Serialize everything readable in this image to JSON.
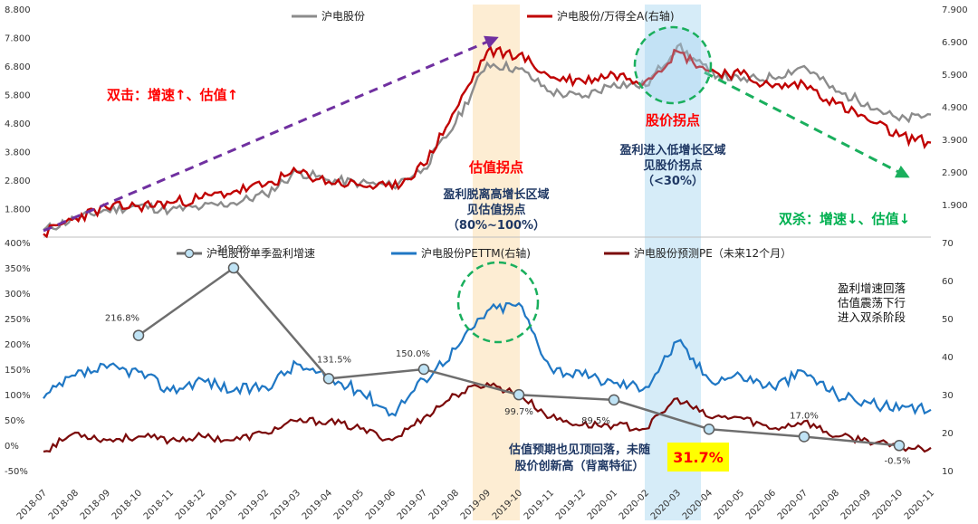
{
  "colors": {
    "gray_series": "#8c8c8c",
    "red_series": "#c00000",
    "blue_series": "#1f77c4",
    "dark_red_series": "#7b0a0a",
    "growth_series": "#6e6e6e",
    "purple_arrow": "#7030a0",
    "green_arrow": "#1aaf5d",
    "highlight_orange": "#fce9c8",
    "highlight_blue": "#cfe9f7",
    "annotation_red": "#ff0000",
    "annotation_navy": "#1f3864",
    "annotation_green": "#00b050",
    "badge_yellow": "#ffff00"
  },
  "x_ticks": [
    "2018-07",
    "2018-08",
    "2018-09",
    "2018-10",
    "2018-11",
    "2018-12",
    "2019-01",
    "2019-02",
    "2019-03",
    "2019-04",
    "2019-05",
    "2019-06",
    "2019-07",
    "2019-08",
    "2019-09",
    "2019-10",
    "2019-11",
    "2019-12",
    "2020-01",
    "2020-02",
    "2020-03",
    "2020-04",
    "2020-05",
    "2020-06",
    "2020-07",
    "2020-08",
    "2020-09",
    "2020-10",
    "2020-11"
  ],
  "chart_data": [
    {
      "type": "line",
      "panel": "top",
      "x_axis": "month",
      "left_axis": {
        "ticks": [
          "1.800",
          "2.800",
          "3.800",
          "4.800",
          "5.800",
          "6.800",
          "7.800",
          "8.800"
        ],
        "range": [
          0.8,
          8.8
        ]
      },
      "right_axis": {
        "ticks": [
          "1.900",
          "2.900",
          "3.900",
          "4.900",
          "5.900",
          "6.900",
          "7.900"
        ],
        "range": [
          0.9,
          7.9
        ]
      },
      "series": [
        {
          "name": "沪电股份",
          "axis": "left",
          "points": [
            [
              0,
              1.05
            ],
            [
              1,
              1.45
            ],
            [
              2,
              1.75
            ],
            [
              3,
              1.9
            ],
            [
              4,
              1.75
            ],
            [
              5,
              1.85
            ],
            [
              6,
              2.0
            ],
            [
              7,
              2.3
            ],
            [
              8,
              3.1
            ],
            [
              9,
              2.8
            ],
            [
              10,
              2.7
            ],
            [
              11,
              2.6
            ],
            [
              12,
              3.2
            ],
            [
              13,
              4.8
            ],
            [
              14,
              6.9
            ],
            [
              15,
              6.7
            ],
            [
              16,
              5.9
            ],
            [
              17,
              5.7
            ],
            [
              18,
              6.2
            ],
            [
              19,
              6.1
            ],
            [
              20,
              7.5
            ],
            [
              21,
              6.6
            ],
            [
              22,
              6.3
            ],
            [
              23,
              6.4
            ],
            [
              24,
              6.8
            ],
            [
              25,
              5.9
            ],
            [
              26,
              5.5
            ],
            [
              27,
              4.9
            ],
            [
              28,
              5.1
            ]
          ]
        },
        {
          "name": "沪电股份/万得全A(右轴)",
          "axis": "right",
          "points": [
            [
              0,
              1.0
            ],
            [
              1,
              1.5
            ],
            [
              2,
              1.8
            ],
            [
              3,
              1.85
            ],
            [
              4,
              1.95
            ],
            [
              5,
              2.1
            ],
            [
              6,
              2.3
            ],
            [
              7,
              2.5
            ],
            [
              8,
              2.9
            ],
            [
              9,
              2.6
            ],
            [
              10,
              2.5
            ],
            [
              11,
              2.4
            ],
            [
              12,
              3.1
            ],
            [
              13,
              4.8
            ],
            [
              14,
              6.6
            ],
            [
              15,
              6.5
            ],
            [
              16,
              5.8
            ],
            [
              17,
              5.7
            ],
            [
              18,
              5.9
            ],
            [
              19,
              5.7
            ],
            [
              20,
              6.6
            ],
            [
              21,
              6.0
            ],
            [
              22,
              5.9
            ],
            [
              23,
              5.5
            ],
            [
              24,
              5.6
            ],
            [
              25,
              5.0
            ],
            [
              26,
              4.5
            ],
            [
              27,
              4.0
            ],
            [
              28,
              3.8
            ]
          ]
        }
      ],
      "annotations": [
        "双击：增速↑、估值↑",
        "估值拐点",
        "盈利脱离高增长区域",
        "见估值拐点",
        "（80%~100%）",
        "股价拐点",
        "盈利进入低增长区域",
        "见股价拐点",
        "（<30%）",
        "双杀：增速↓、估值↓"
      ]
    },
    {
      "type": "line",
      "panel": "bottom",
      "x_axis": "month",
      "left_axis": {
        "ticks": [
          "-50%",
          "0%",
          "50%",
          "100%",
          "150%",
          "200%",
          "250%",
          "300%",
          "350%",
          "400%"
        ],
        "range": [
          -50,
          400
        ]
      },
      "right_axis": {
        "ticks": [
          "10",
          "20",
          "30",
          "40",
          "50",
          "60",
          "70"
        ],
        "range": [
          10,
          70
        ]
      },
      "series": [
        {
          "name": "沪电股份单季盈利增速",
          "axis": "left",
          "points": [
            [
              3,
              216.8
            ],
            [
              6,
              349.9
            ],
            [
              9,
              131.5
            ],
            [
              12,
              150.0
            ],
            [
              15,
              99.7
            ],
            [
              18,
              89.5
            ],
            [
              21,
              31.7
            ],
            [
              24,
              17.0
            ],
            [
              27,
              -0.5
            ]
          ]
        },
        {
          "name": "沪电股份PETTM(右轴)",
          "axis": "right",
          "points": [
            [
              0,
              29
            ],
            [
              1,
              35
            ],
            [
              2,
              37
            ],
            [
              3,
              36
            ],
            [
              4,
              31
            ],
            [
              5,
              34
            ],
            [
              6,
              31
            ],
            [
              7,
              32
            ],
            [
              8,
              38
            ],
            [
              9,
              34
            ],
            [
              10,
              31
            ],
            [
              11,
              25
            ],
            [
              12,
              34
            ],
            [
              13,
              42
            ],
            [
              14,
              52
            ],
            [
              15,
              54
            ],
            [
              16,
              37
            ],
            [
              17,
              35
            ],
            [
              18,
              33
            ],
            [
              19,
              32
            ],
            [
              20,
              44
            ],
            [
              21,
              34
            ],
            [
              22,
              35
            ],
            [
              23,
              32
            ],
            [
              24,
              36
            ],
            [
              25,
              30
            ],
            [
              26,
              28
            ],
            [
              27,
              26
            ],
            [
              28,
              26
            ]
          ]
        },
        {
          "name": "沪电股份预测PE（未来12个月）",
          "axis": "right",
          "points": [
            [
              0,
              15
            ],
            [
              1,
              20
            ],
            [
              2,
              18
            ],
            [
              3,
              19
            ],
            [
              4,
              18
            ],
            [
              5,
              19
            ],
            [
              6,
              18
            ],
            [
              7,
              20
            ],
            [
              8,
              23
            ],
            [
              9,
              23
            ],
            [
              10,
              21
            ],
            [
              11,
              18
            ],
            [
              12,
              24
            ],
            [
              13,
              30
            ],
            [
              14,
              33
            ],
            [
              15,
              30
            ],
            [
              16,
              24
            ],
            [
              17,
              22
            ],
            [
              18,
              22
            ],
            [
              19,
              21
            ],
            [
              20,
              29
            ],
            [
              21,
              24
            ],
            [
              22,
              24
            ],
            [
              23,
              21
            ],
            [
              24,
              23
            ],
            [
              25,
              19
            ],
            [
              26,
              18
            ],
            [
              27,
              16
            ],
            [
              28,
              16
            ]
          ]
        }
      ],
      "point_labels": [
        "216.8%",
        "349.9%",
        "131.5%",
        "150.0%",
        "99.7%",
        "89.5%",
        "31.7%",
        "17.0%",
        "-0.5%"
      ],
      "annotations": [
        "盈利增速回落",
        "估值震荡下行",
        "进入双杀阶段",
        "估值预期也见顶回落，未随",
        "股价创新高（背离特征）"
      ]
    }
  ]
}
